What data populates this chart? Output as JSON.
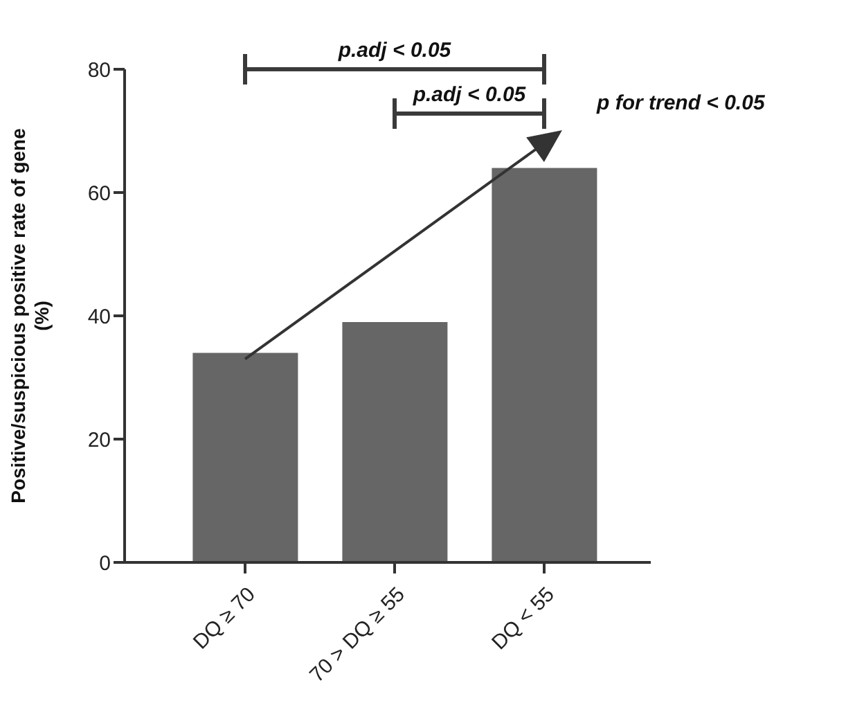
{
  "chart_data": {
    "type": "bar",
    "ylabel": "Positive/suspicious positive rate of gene\n(%)",
    "categories": [
      "DQ ≥ 70",
      "70 > DQ ≥ 55",
      "DQ < 55"
    ],
    "series": [
      {
        "color": "#666666",
        "values": [
          34,
          39,
          64
        ]
      },
      {
        "type": "line",
        "color": "#333333",
        "values": [
          33,
          50.5,
          68
        ]
      }
    ],
    "ylim": [
      0,
      80
    ],
    "yticks": [
      0,
      20,
      40,
      60,
      80
    ],
    "grid": false,
    "legend": false,
    "annotations": [
      "p.adj < 0.05",
      "p.adj < 0.05",
      "p for trend < 0.05"
    ]
  }
}
